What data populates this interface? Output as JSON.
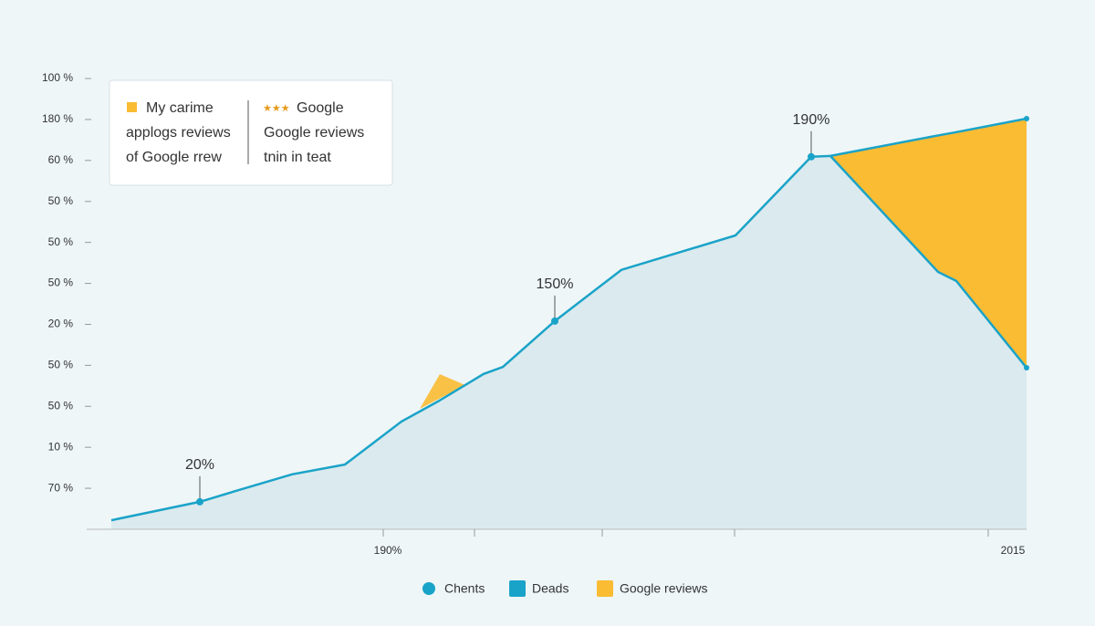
{
  "chart_data": {
    "type": "line",
    "x": [
      122,
      219,
      262,
      320,
      378,
      440,
      480,
      530,
      551,
      608,
      681,
      806,
      889,
      910,
      1028,
      1048,
      1125
    ],
    "xlim": [
      100,
      1125
    ],
    "xticks": [
      {
        "value": 420,
        "label": "190%"
      },
      {
        "value": 520,
        "label": null
      },
      {
        "value": 660,
        "label": null
      },
      {
        "value": 805,
        "label": null
      },
      {
        "value": 1083,
        "label": "2015"
      }
    ],
    "ylim": [
      0,
      11
    ],
    "yticks": [
      {
        "value": 1,
        "label": "70 %"
      },
      {
        "value": 2,
        "label": "10 %"
      },
      {
        "value": 3,
        "label": "50 %"
      },
      {
        "value": 4,
        "label": "50 %"
      },
      {
        "value": 5,
        "label": "20 %"
      },
      {
        "value": 6,
        "label": "50 %"
      },
      {
        "value": 7,
        "label": "50 %"
      },
      {
        "value": 8,
        "label": "50 %"
      },
      {
        "value": 9,
        "label": "60 %"
      },
      {
        "value": 10,
        "label": "180 %"
      },
      {
        "value": 11,
        "label": "100 %"
      }
    ],
    "series": [
      {
        "name": "Chents",
        "color": "#1aa3c8",
        "values": [
          0.22,
          0.67,
          0.96,
          1.34,
          1.58,
          2.63,
          3.12,
          3.79,
          3.96,
          5.08,
          6.33,
          7.17,
          9.09,
          9.11,
          6.28,
          6.06,
          3.94
        ]
      },
      {
        "name": "Deads",
        "color": "#1aa3c8",
        "values": [
          null,
          null,
          null,
          null,
          null,
          null,
          null,
          null,
          null,
          null,
          null,
          null,
          null,
          9.11,
          9.61,
          9.69,
          10.02
        ]
      },
      {
        "name": "Google reviews",
        "color": "#f9bc33",
        "values": [
          null,
          null,
          null,
          null,
          null,
          null,
          null,
          null,
          null,
          null,
          null,
          null,
          null,
          9.11,
          9.61,
          9.69,
          10.02
        ]
      }
    ],
    "annotations": [
      {
        "text": "20%",
        "x": 219,
        "y": 0.67
      },
      {
        "text": "150%",
        "x": 608,
        "y": 5.08
      },
      {
        "text": "190%",
        "x": 889,
        "y": 9.09
      }
    ],
    "legend_box": {
      "left": [
        "My carime",
        "applogs reviews",
        "of Google rrew"
      ],
      "stars": "★★★",
      "right": [
        "Google",
        "Google reviews",
        "tnin in teat"
      ]
    }
  }
}
